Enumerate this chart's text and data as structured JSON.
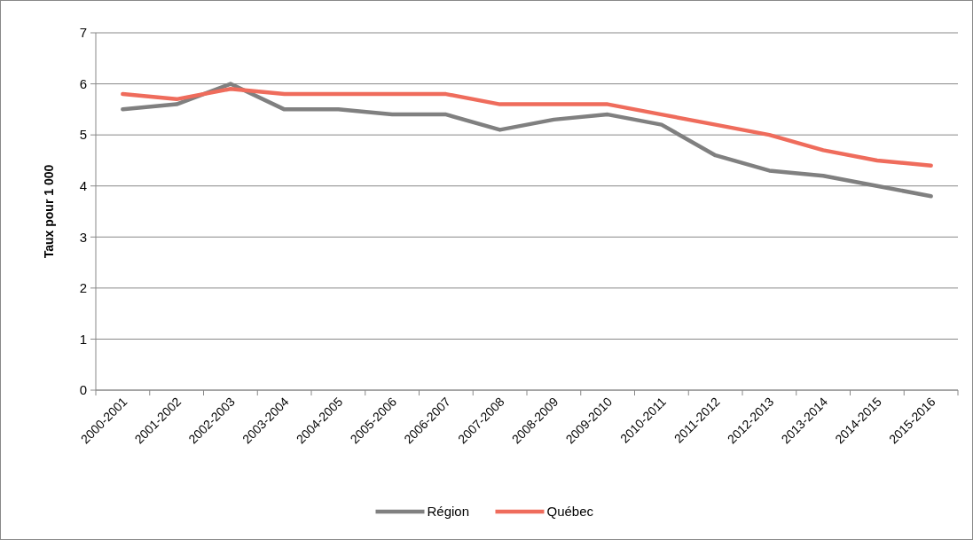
{
  "chart_data": {
    "type": "line",
    "ylabel": "Taux pour 1 000",
    "categories": [
      "2000-2001",
      "2001-2002",
      "2002-2003",
      "2003-2004",
      "2004-2005",
      "2005-2006",
      "2006-2007",
      "2007-2008",
      "2008-2009",
      "2009-2010",
      "2010-2011",
      "2011-2012",
      "2012-2013",
      "2013-2014",
      "2014-2015",
      "2015-2016"
    ],
    "series": [
      {
        "name": "Région",
        "color": "#808080",
        "values": [
          5.5,
          5.6,
          6.0,
          5.5,
          5.5,
          5.4,
          5.4,
          5.1,
          5.3,
          5.4,
          5.2,
          4.6,
          4.3,
          4.2,
          4.0,
          3.8
        ]
      },
      {
        "name": "Québec",
        "color": "#ef6c5c",
        "values": [
          5.8,
          5.7,
          5.9,
          5.8,
          5.8,
          5.8,
          5.8,
          5.6,
          5.6,
          5.6,
          5.4,
          5.2,
          5.0,
          4.7,
          4.5,
          4.4
        ]
      }
    ],
    "ylim": [
      0,
      7
    ],
    "yticks": [
      0,
      1,
      2,
      3,
      4,
      5,
      6,
      7
    ],
    "grid": "y",
    "legend": "bottom",
    "marker": "none",
    "line_style": "solid"
  }
}
